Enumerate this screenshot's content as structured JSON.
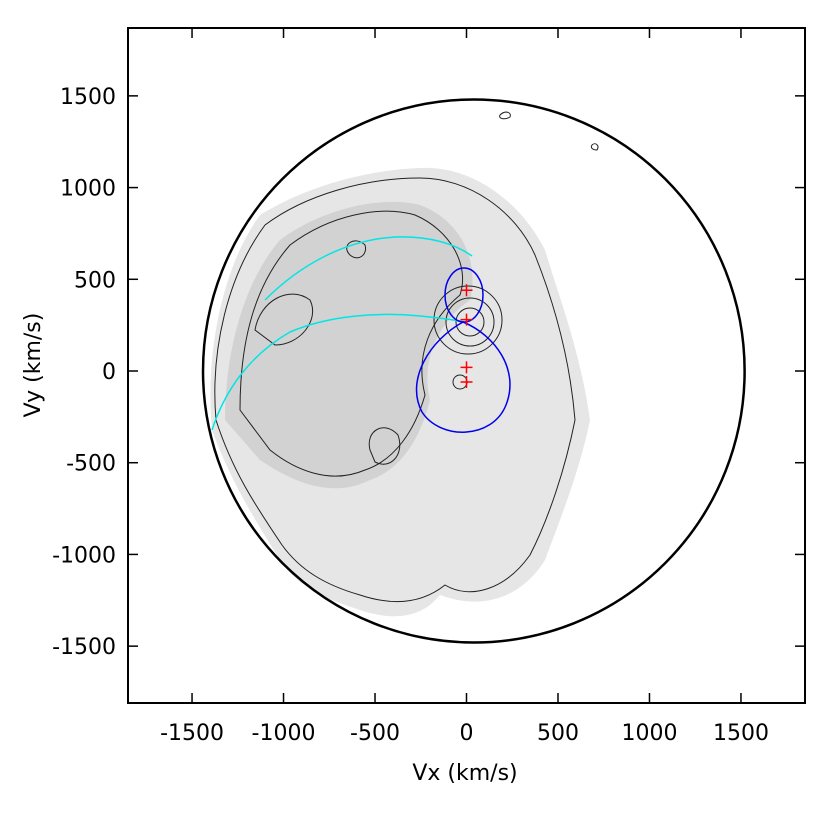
{
  "chart_data": {
    "type": "scatter",
    "xlabel": "Vx (km/s)",
    "ylabel": "Vy (km/s)",
    "xlim": [
      -1850,
      1850
    ],
    "ylim": [
      -1810,
      1870
    ],
    "xticks": [
      -1500,
      -1000,
      -500,
      0,
      500,
      1000,
      1500
    ],
    "yticks": [
      -1500,
      -1000,
      -500,
      0,
      500,
      1000,
      1500
    ],
    "series": [
      {
        "color": "#ff0000",
        "x": [
          0,
          0,
          0,
          0
        ],
        "values": [
          440,
          280,
          20,
          -60
        ]
      }
    ],
    "outer_circle": {
      "x": 40,
      "y": 0,
      "r": 1480,
      "color": "#000000"
    }
  }
}
